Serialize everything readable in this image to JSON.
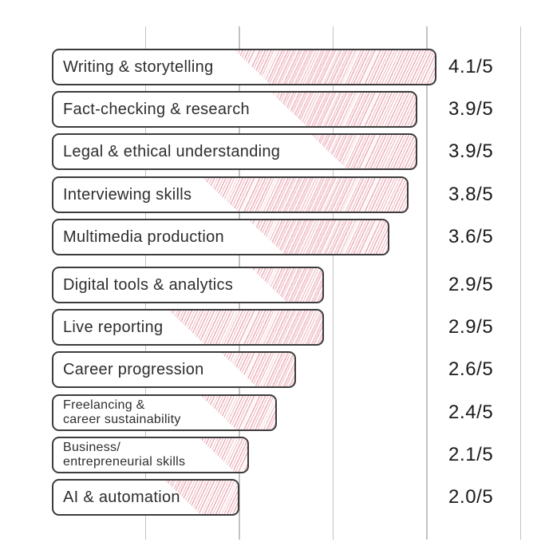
{
  "page": {
    "background": "#ffffff"
  },
  "style": {
    "bar_border_color": "#3c3c3c",
    "bar_fill_color": "#ffffff",
    "hatch_color": "#d65a6e",
    "label_color": "#2d2d2d",
    "value_color": "#1a1a1a",
    "gridline_color": "#c3c3c3"
  },
  "chart_data": {
    "type": "bar",
    "orientation": "horizontal",
    "title": "",
    "xlabel": "",
    "ylabel": "",
    "xlim": [
      0,
      5
    ],
    "rating_max": 5,
    "grid": true,
    "gridlines_at": [
      1,
      2,
      3,
      4,
      5
    ],
    "legend": false,
    "categories": [
      "Writing & storytelling",
      "Fact-checking & research",
      "Legal & ethical understanding",
      "Interviewing skills",
      "Multimedia production",
      "Digital tools & analytics",
      "Live reporting",
      "Career progression",
      "Freelancing & career sustainability",
      "Business/entrepreneurial skills",
      "AI & automation"
    ],
    "values": [
      4.1,
      3.9,
      3.9,
      3.8,
      3.6,
      2.9,
      2.9,
      2.6,
      2.4,
      2.1,
      2.0
    ],
    "value_labels": [
      "4.1/5",
      "3.9/5",
      "3.9/5",
      "3.8/5",
      "3.6/5",
      "2.9/5",
      "2.9/5",
      "2.6/5",
      "2.4/5",
      "2.1/5",
      "2.0/5"
    ],
    "rows": [
      {
        "lines": [
          "Writing & storytelling"
        ],
        "value": 4.1,
        "value_label": "4.1/5",
        "hatch_offset": 227,
        "small_font": false
      },
      {
        "lines": [
          "Fact-checking & research"
        ],
        "value": 3.9,
        "value_label": "3.9/5",
        "hatch_offset": 273,
        "small_font": false
      },
      {
        "lines": [
          "Legal & ethical understanding"
        ],
        "value": 3.9,
        "value_label": "3.9/5",
        "hatch_offset": 323,
        "small_font": false
      },
      {
        "lines": [
          "Interviewing skills"
        ],
        "value": 3.8,
        "value_label": "3.8/5",
        "hatch_offset": 187,
        "small_font": false
      },
      {
        "lines": [
          "Multimedia production"
        ],
        "value": 3.6,
        "value_label": "3.6/5",
        "hatch_offset": 245,
        "small_font": false
      },
      {
        "lines": [
          "Digital tools & analytics"
        ],
        "value": 2.9,
        "value_label": "2.9/5",
        "hatch_offset": 248,
        "small_font": false
      },
      {
        "lines": [
          "Live reporting"
        ],
        "value": 2.9,
        "value_label": "2.9/5",
        "hatch_offset": 145,
        "small_font": false
      },
      {
        "lines": [
          "Career progression"
        ],
        "value": 2.6,
        "value_label": "2.6/5",
        "hatch_offset": 210,
        "small_font": false
      },
      {
        "lines": [
          "Freelancing &",
          "career sustainability"
        ],
        "value": 2.4,
        "value_label": "2.4/5",
        "hatch_offset": 185,
        "small_font": true
      },
      {
        "lines": [
          "Business/",
          "entrepreneurial skills"
        ],
        "value": 2.1,
        "value_label": "2.1/5",
        "hatch_offset": 183,
        "small_font": true
      },
      {
        "lines": [
          "AI & automation"
        ],
        "value": 2.0,
        "value_label": "2.0/5",
        "hatch_offset": 140,
        "small_font": false
      }
    ]
  }
}
